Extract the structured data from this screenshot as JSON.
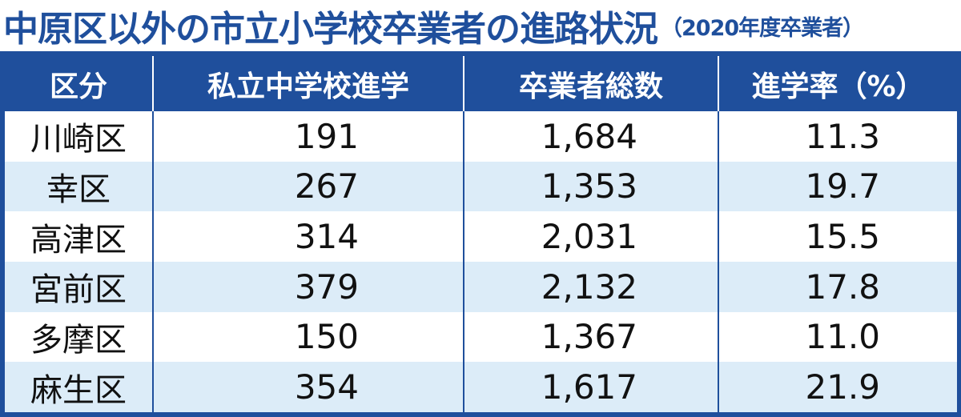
{
  "title": {
    "main": "中原区以外の市立小学校卒業者の進路状況",
    "sub": "（2020年度卒業者）"
  },
  "table": {
    "headers": [
      "区分",
      "私立中学校進学",
      "卒業者総数",
      "進学率（%）"
    ],
    "rows": [
      {
        "district": "川崎区",
        "private": "191",
        "total": "1,684",
        "rate": "11.3"
      },
      {
        "district": "幸区",
        "private": "267",
        "total": "1,353",
        "rate": "19.7"
      },
      {
        "district": "高津区",
        "private": "314",
        "total": "2,031",
        "rate": "15.5"
      },
      {
        "district": "宮前区",
        "private": "379",
        "total": "2,132",
        "rate": "17.8"
      },
      {
        "district": "多摩区",
        "private": "150",
        "total": "1,367",
        "rate": "11.0"
      },
      {
        "district": "麻生区",
        "private": "354",
        "total": "1,617",
        "rate": "21.9"
      }
    ]
  },
  "colors": {
    "accent": "#1f4f9c",
    "row_alt": "#dcecf8"
  }
}
